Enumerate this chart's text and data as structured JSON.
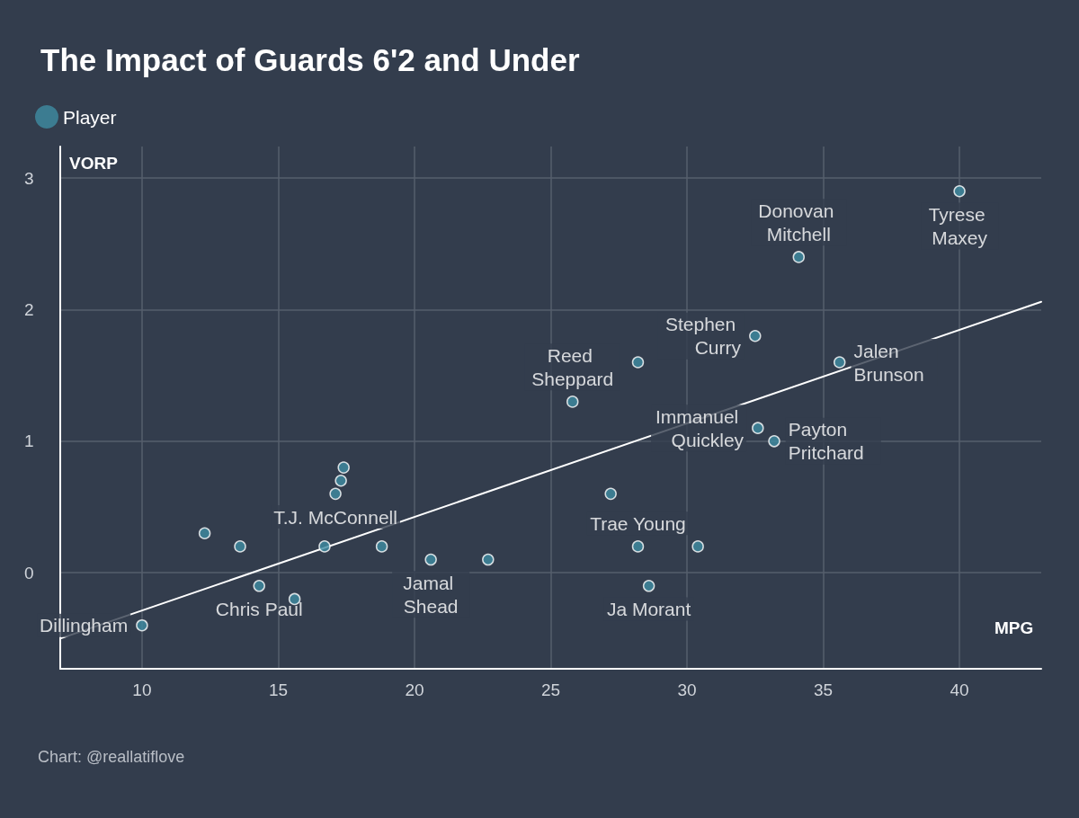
{
  "chart_data": {
    "type": "scatter",
    "title": "The Impact of Guards 6'2 and Under",
    "xlabel": "MPG",
    "ylabel": "VORP",
    "annotations": [
      {
        "text": "Dillingham",
        "x": 10,
        "y": -0.4
      },
      {
        "text": "Chris Paul",
        "x": 14.3,
        "y": -0.1
      },
      {
        "text": "T.J. McConnell",
        "x": 17.1,
        "y": 0.6
      },
      {
        "text": "Jamal Shead",
        "x": 20.6,
        "y": 0.1
      },
      {
        "text": "Reed Sheppard",
        "x": 25.8,
        "y": 1.3
      },
      {
        "text": "Stephen Curry",
        "x": 32.5,
        "y": 1.8
      },
      {
        "text": "Immanuel Quickley",
        "x": 32.6,
        "y": 1.1
      },
      {
        "text": "Payton Pritchard",
        "x": 33.2,
        "y": 1.0
      },
      {
        "text": "Donovan Mitchell",
        "x": 34.1,
        "y": 2.4
      },
      {
        "text": "Jalen Brunson",
        "x": 35.6,
        "y": 1.6
      },
      {
        "text": "Tyrese Maxey",
        "x": 40.0,
        "y": 2.9
      },
      {
        "text": "Trae Young",
        "x": 28.2,
        "y": 0.2
      },
      {
        "text": "Ja Morant",
        "x": 28.6,
        "y": -0.1
      },
      "Chart: @reallatiflove"
    ],
    "series": [
      {
        "name": "Player",
        "color": "#3f8ca3",
        "marker": "circle",
        "x": [
          10,
          12.3,
          13.6,
          14.3,
          15.6,
          16.7,
          17.1,
          17.3,
          17.4,
          18.8,
          20.6,
          22.7,
          25.8,
          28.2,
          27.2,
          28.2,
          30.4,
          28.6,
          32.5,
          32.6,
          33.2,
          34.1,
          35.6,
          40.0
        ],
        "values": [
          -0.4,
          0.3,
          0.2,
          -0.1,
          -0.2,
          0.2,
          0.6,
          0.7,
          0.8,
          0.2,
          0.1,
          0.1,
          1.3,
          1.6,
          0.6,
          0.2,
          0.2,
          -0.1,
          1.8,
          1.1,
          1.0,
          2.4,
          1.6,
          2.9
        ]
      },
      {
        "type": "line",
        "color": "#ffffff",
        "marker": "none",
        "x": [
          7,
          43
        ],
        "values": [
          -0.5,
          2.06
        ]
      }
    ],
    "xlim": [
      7,
      43
    ],
    "xticks": [
      10,
      15,
      20,
      25,
      30,
      35,
      40
    ],
    "ylim": [
      -0.73,
      3.24
    ],
    "yticks": [
      0,
      1,
      2,
      3
    ],
    "grid": true,
    "legend": "top left"
  }
}
